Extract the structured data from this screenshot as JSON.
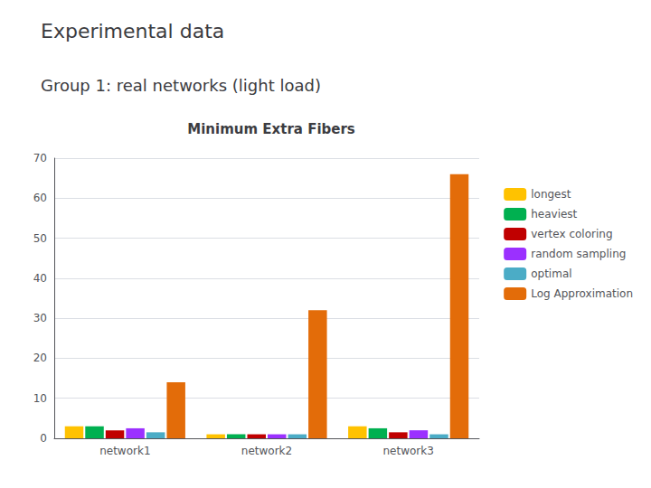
{
  "chart_data": {
    "type": "bar",
    "title": "Experimental data",
    "subtitle": "Group 1: real networks (light load)",
    "annotations": [
      "Minimum Extra Fibers"
    ],
    "categories": [
      "network1",
      "network2",
      "network3"
    ],
    "series": [
      {
        "name": "longest",
        "color": "#FFC200",
        "values": [
          3.0,
          1.0,
          3.0
        ]
      },
      {
        "name": "heaviest",
        "color": "#00B050",
        "values": [
          3.0,
          1.0,
          2.5
        ]
      },
      {
        "name": "vertex coloring",
        "color": "#C00000",
        "values": [
          2.0,
          1.0,
          1.5
        ]
      },
      {
        "name": "random sampling",
        "color": "#9B30FF",
        "values": [
          2.5,
          1.0,
          2.0
        ]
      },
      {
        "name": "optimal",
        "color": "#4BACC6",
        "values": [
          1.5,
          1.0,
          1.0
        ]
      },
      {
        "name": "Log Approximation",
        "color": "#E36C09",
        "values": [
          14.0,
          32.0,
          66.0
        ]
      }
    ],
    "ylim": [
      0,
      70
    ],
    "yticks": [
      0,
      10,
      20,
      30,
      40,
      50,
      60,
      70
    ],
    "grid": true,
    "legend": "right"
  }
}
